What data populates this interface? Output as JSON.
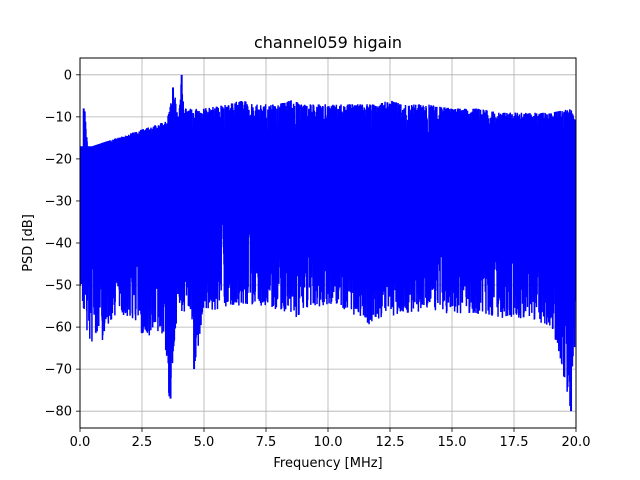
{
  "chart_data": {
    "type": "line",
    "title": "channel059 higain",
    "xlabel": "Frequency [MHz]",
    "ylabel": "PSD [dB]",
    "xlim": [
      0.0,
      20.0
    ],
    "ylim": [
      -84,
      4
    ],
    "xticks": [
      0.0,
      2.5,
      5.0,
      7.5,
      10.0,
      12.5,
      15.0,
      17.5,
      20.0
    ],
    "xtick_labels": [
      "0.0",
      "2.5",
      "5.0",
      "7.5",
      "10.0",
      "12.5",
      "15.0",
      "17.5",
      "20.0"
    ],
    "yticks": [
      0,
      -10,
      -20,
      -30,
      -40,
      -50,
      -60,
      -70,
      -80
    ],
    "ytick_labels": [
      "0",
      "−10",
      "−20",
      "−30",
      "−40",
      "−50",
      "−60",
      "−70",
      "−80"
    ],
    "grid": true,
    "line_color": "#0000ff",
    "series": [
      {
        "name": "",
        "color": "#0000ff",
        "description_note": "",
        "upper_envelope": {
          "x": [
            0.0,
            0.15,
            0.2,
            0.3,
            0.5,
            1.0,
            1.5,
            2.0,
            2.5,
            3.0,
            3.5,
            3.8,
            3.9,
            4.0,
            4.1,
            4.2,
            4.5,
            5.0,
            6.0,
            6.5,
            7.0,
            8.0,
            8.5,
            9.0,
            10.0,
            11.0,
            12.0,
            12.5,
            13.0,
            14.0,
            15.0,
            16.0,
            17.0,
            18.0,
            19.0,
            19.8,
            20.0
          ],
          "y": [
            -17,
            -17,
            -8,
            -17,
            -17,
            -16,
            -15,
            -14,
            -13,
            -12,
            -11,
            -3,
            -9,
            -8,
            0,
            -8,
            -8,
            -8,
            -7,
            -6,
            -7,
            -7,
            -6,
            -7,
            -7,
            -7,
            -7,
            -6,
            -7,
            -7,
            -8,
            -8,
            -9,
            -9,
            -9,
            -8,
            -11
          ]
        },
        "lower_envelope": {
          "x": [
            0.0,
            0.2,
            0.4,
            0.6,
            0.9,
            1.0,
            1.5,
            2.0,
            2.2,
            2.5,
            3.0,
            3.4,
            3.6,
            3.9,
            4.0,
            4.5,
            4.6,
            5.0,
            6.0,
            7.0,
            8.0,
            8.7,
            9.0,
            10.0,
            11.0,
            11.7,
            12.0,
            13.0,
            14.0,
            15.0,
            16.0,
            17.0,
            18.0,
            19.0,
            19.8,
            20.0
          ],
          "y": [
            -50,
            -58,
            -65,
            -62,
            -66,
            -60,
            -58,
            -58,
            -58,
            -62,
            -62,
            -63,
            -77,
            -58,
            -56,
            -58,
            -70,
            -57,
            -55,
            -55,
            -56,
            -58,
            -56,
            -55,
            -57,
            -60,
            -58,
            -57,
            -56,
            -57,
            -57,
            -58,
            -58,
            -60,
            -80,
            -60
          ]
        },
        "typical_band": [
          -45,
          -10
        ],
        "spikes": [
          {
            "x": 0.15,
            "y": -8
          },
          {
            "x": 3.75,
            "y": -3
          },
          {
            "x": 4.1,
            "y": 0
          },
          {
            "x": 3.65,
            "y": -77
          },
          {
            "x": 4.6,
            "y": -70
          },
          {
            "x": 19.8,
            "y": -80
          }
        ]
      }
    ]
  }
}
